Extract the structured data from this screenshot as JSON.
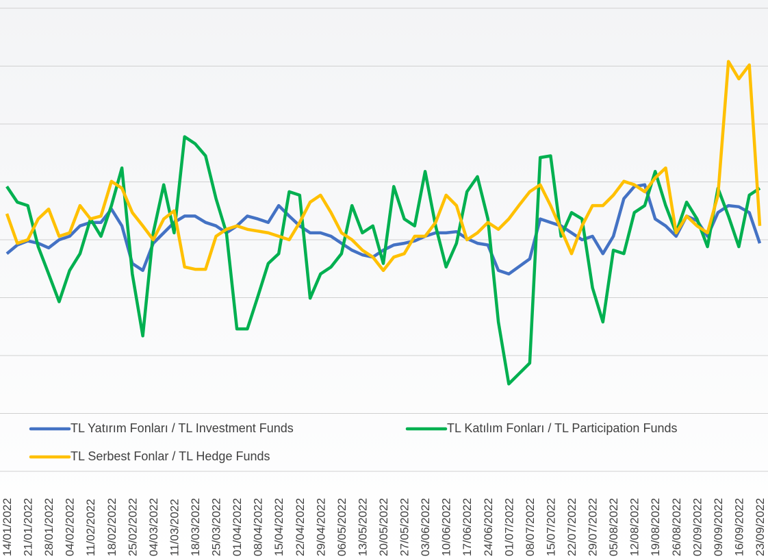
{
  "chart_data": {
    "type": "line",
    "categories": [
      "14/01/2022",
      null,
      "21/01/2022",
      null,
      "28/01/2022",
      null,
      "04/02/2022",
      null,
      "11/02/2022",
      null,
      "18/02/2022",
      null,
      "25/02/2022",
      null,
      "04/03/2022",
      null,
      "11/03/2022",
      null,
      "18/03/2022",
      null,
      "25/03/2022",
      null,
      "01/04/2022",
      null,
      "08/04/2022",
      null,
      "15/04/2022",
      null,
      "22/04/2022",
      null,
      "29/04/2022",
      null,
      "06/05/2022",
      null,
      "13/05/2022",
      null,
      "20/05/2022",
      null,
      "27/05/2022",
      null,
      "03/06/2022",
      null,
      "10/06/2022",
      null,
      "17/06/2022",
      null,
      "24/06/2022",
      null,
      "01/07/2022",
      null,
      "08/07/2022",
      null,
      "15/07/2022",
      null,
      "22/07/2022",
      null,
      "29/07/2022",
      null,
      "05/08/2022",
      null,
      "12/08/2022",
      null,
      "19/08/2022",
      null,
      "26/08/2022",
      null,
      "02/09/2022",
      null,
      "09/09/2022",
      null,
      "16/09/2022",
      null,
      "23/09/2022"
    ],
    "series": [
      {
        "name": "TL Yatırım Fonları / TL Investment Funds",
        "color": "#4472c4",
        "values": [
          -0.24,
          -0.09,
          -0.02,
          -0.06,
          -0.14,
          0,
          0.06,
          0.24,
          0.3,
          0.3,
          0.53,
          0.24,
          -0.41,
          -0.53,
          -0.06,
          0.12,
          0.3,
          0.41,
          0.41,
          0.3,
          0.24,
          0.12,
          0.24,
          0.41,
          0.36,
          0.3,
          0.59,
          0.41,
          0.24,
          0.12,
          0.12,
          0.06,
          -0.06,
          -0.18,
          -0.26,
          -0.3,
          -0.18,
          -0.09,
          -0.06,
          -0.02,
          0.06,
          0.12,
          0.12,
          0.14,
          0.02,
          -0.06,
          -0.09,
          -0.53,
          -0.59,
          -0.46,
          -0.33,
          0.36,
          0.3,
          0.24,
          0.12,
          0,
          0.06,
          -0.24,
          0.06,
          0.71,
          0.92,
          0.95,
          0.36,
          0.24,
          0.06,
          0.41,
          0.33,
          0.06,
          0.47,
          0.59,
          0.57,
          0.47,
          -0.06
        ]
      },
      {
        "name": "TL Katılım Fonları / TL Participation Funds",
        "color": "#00b050",
        "values": [
          0.92,
          0.65,
          0.59,
          -0.12,
          -0.59,
          -1.07,
          -0.53,
          -0.24,
          0.36,
          0.06,
          0.59,
          1.24,
          -0.59,
          -1.66,
          0.12,
          0.95,
          0.12,
          1.78,
          1.66,
          1.45,
          0.71,
          0.12,
          -1.54,
          -1.54,
          -0.98,
          -0.41,
          -0.24,
          0.83,
          0.77,
          -1.01,
          -0.59,
          -0.47,
          -0.24,
          0.59,
          0.12,
          0.24,
          -0.41,
          0.92,
          0.36,
          0.24,
          1.18,
          0.24,
          -0.47,
          -0.06,
          0.83,
          1.09,
          0.36,
          -1.42,
          -2.49,
          -2.31,
          -2.13,
          1.42,
          1.45,
          0.06,
          0.47,
          0.36,
          -0.83,
          -1.42,
          -0.18,
          -0.24,
          0.47,
          0.59,
          1.18,
          0.59,
          0.12,
          0.65,
          0.36,
          -0.12,
          0.89,
          0.41,
          -0.12,
          0.77,
          0.89
        ]
      },
      {
        "name": "TL Serbest Fonlar / TL Hedge Funds",
        "color": "#ffc000",
        "values": [
          0.45,
          -0.06,
          0,
          0.36,
          0.53,
          0.06,
          0.12,
          0.59,
          0.36,
          0.41,
          1.01,
          0.89,
          0.47,
          0.24,
          0,
          0.36,
          0.5,
          -0.47,
          -0.51,
          -0.51,
          0.06,
          0.18,
          0.24,
          0.18,
          0.15,
          0.12,
          0.06,
          0,
          0.3,
          0.65,
          0.77,
          0.47,
          0.12,
          0,
          -0.18,
          -0.3,
          -0.53,
          -0.3,
          -0.24,
          0.06,
          0.06,
          0.3,
          0.77,
          0.59,
          0,
          0.12,
          0.3,
          0.18,
          0.36,
          0.6,
          0.83,
          0.95,
          0.59,
          0.18,
          -0.24,
          0.24,
          0.59,
          0.59,
          0.77,
          1.01,
          0.95,
          0.83,
          1.07,
          1.24,
          0.12,
          0.41,
          0.24,
          0.12,
          0.77,
          3.08,
          2.78,
          3.02,
          0.24
        ]
      }
    ],
    "ylim": [
      -4,
      4
    ],
    "yticks": [
      -4,
      -3,
      -2,
      -1,
      0,
      1,
      2,
      3,
      4
    ],
    "grid": true,
    "legend": "bottom"
  }
}
